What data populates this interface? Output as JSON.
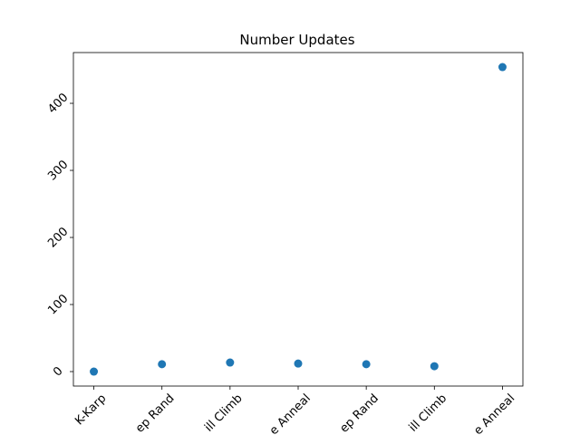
{
  "chart_data": {
    "type": "scatter",
    "title": "Number Updates",
    "categories": [
      "K-Karp",
      "ep Rand",
      "ill Climb",
      "e Anneal",
      "ep Rand",
      "ill Climb",
      "e Anneal"
    ],
    "values": [
      0,
      11,
      13.5,
      12,
      11,
      8,
      454
    ],
    "color": "#1f77b4",
    "ylim": [
      -21.6,
      475.7
    ],
    "yticks": [
      0,
      100,
      200,
      300,
      400
    ]
  }
}
